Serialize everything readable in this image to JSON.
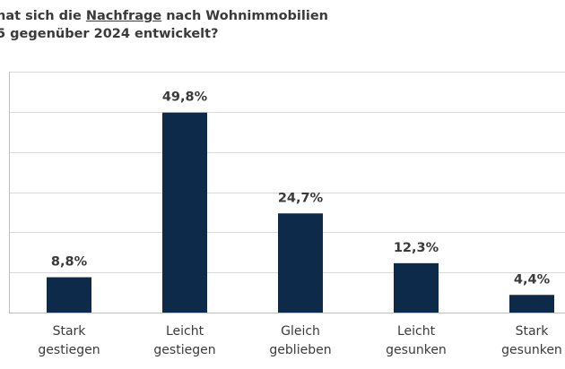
{
  "title": {
    "line1_prefix": "hat sich die ",
    "line1_underlined": "Nachfrage",
    "line1_suffix": " nach Wohnimmobilien",
    "line2": "5 gegenüber 2024 entwickelt?"
  },
  "colors": {
    "bar": "#0d2a4a",
    "grid": "#d9d9d9",
    "axis": "#bfbfbf",
    "text": "#3a3a3a"
  },
  "chart_data": {
    "type": "bar",
    "title": "hat sich die Nachfrage nach Wohnimmobilien 5 gegenüber 2024 entwickelt?",
    "categories": [
      [
        "Stark",
        "gestiegen"
      ],
      [
        "Leicht",
        "gestiegen"
      ],
      [
        "Gleich",
        "geblieben"
      ],
      [
        "Leicht",
        "gesunken"
      ],
      [
        "Stark",
        "gesunken"
      ]
    ],
    "values": [
      8.8,
      49.8,
      24.7,
      12.3,
      4.4
    ],
    "value_labels": [
      "8,8%",
      "49,8%",
      "24,7%",
      "12,3%",
      "4,4%"
    ],
    "xlabel": "",
    "ylabel": "",
    "ylim": [
      0,
      60
    ],
    "grid": true,
    "legend": "none"
  }
}
